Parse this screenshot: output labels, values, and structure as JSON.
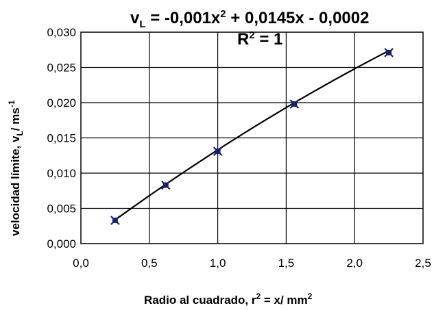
{
  "chart_data": {
    "type": "scatter",
    "equation_prefix": "v",
    "equation_sub": "L",
    "equation_body_1": " = -0,001x",
    "equation_sup": "2",
    "equation_body_2": " + 0,0145x - 0,0002",
    "r2_prefix": "R",
    "r2_sup": "2",
    "r2_body": " = 1",
    "xlabel_1": "Radio al cuadrado,  r",
    "xlabel_sup_1": "2",
    "xlabel_2": " = x/ mm",
    "xlabel_sup_2": "2",
    "ylabel_1": "velocidad límite,  v",
    "ylabel_sub": "L",
    "ylabel_2": "/ ms",
    "ylabel_sup": "-1",
    "xlim": [
      0.0,
      2.5
    ],
    "ylim": [
      0.0,
      0.03
    ],
    "xticks": [
      "0,0",
      "0,5",
      "1,0",
      "1,5",
      "2,0",
      "2,5"
    ],
    "yticks": [
      "0,000",
      "0,005",
      "0,010",
      "0,015",
      "0,020",
      "0,025",
      "0,030"
    ],
    "grid": true,
    "series": [
      {
        "x": [
          0.25,
          0.62,
          1.0,
          1.56,
          2.25
        ],
        "y": [
          0.0033,
          0.0083,
          0.0131,
          0.0198,
          0.0271
        ],
        "marker_color": "#1a1f6e"
      }
    ],
    "trendline": {
      "coefficients": [
        -0.001,
        0.0145,
        -0.0002
      ],
      "color": "#000000"
    }
  }
}
